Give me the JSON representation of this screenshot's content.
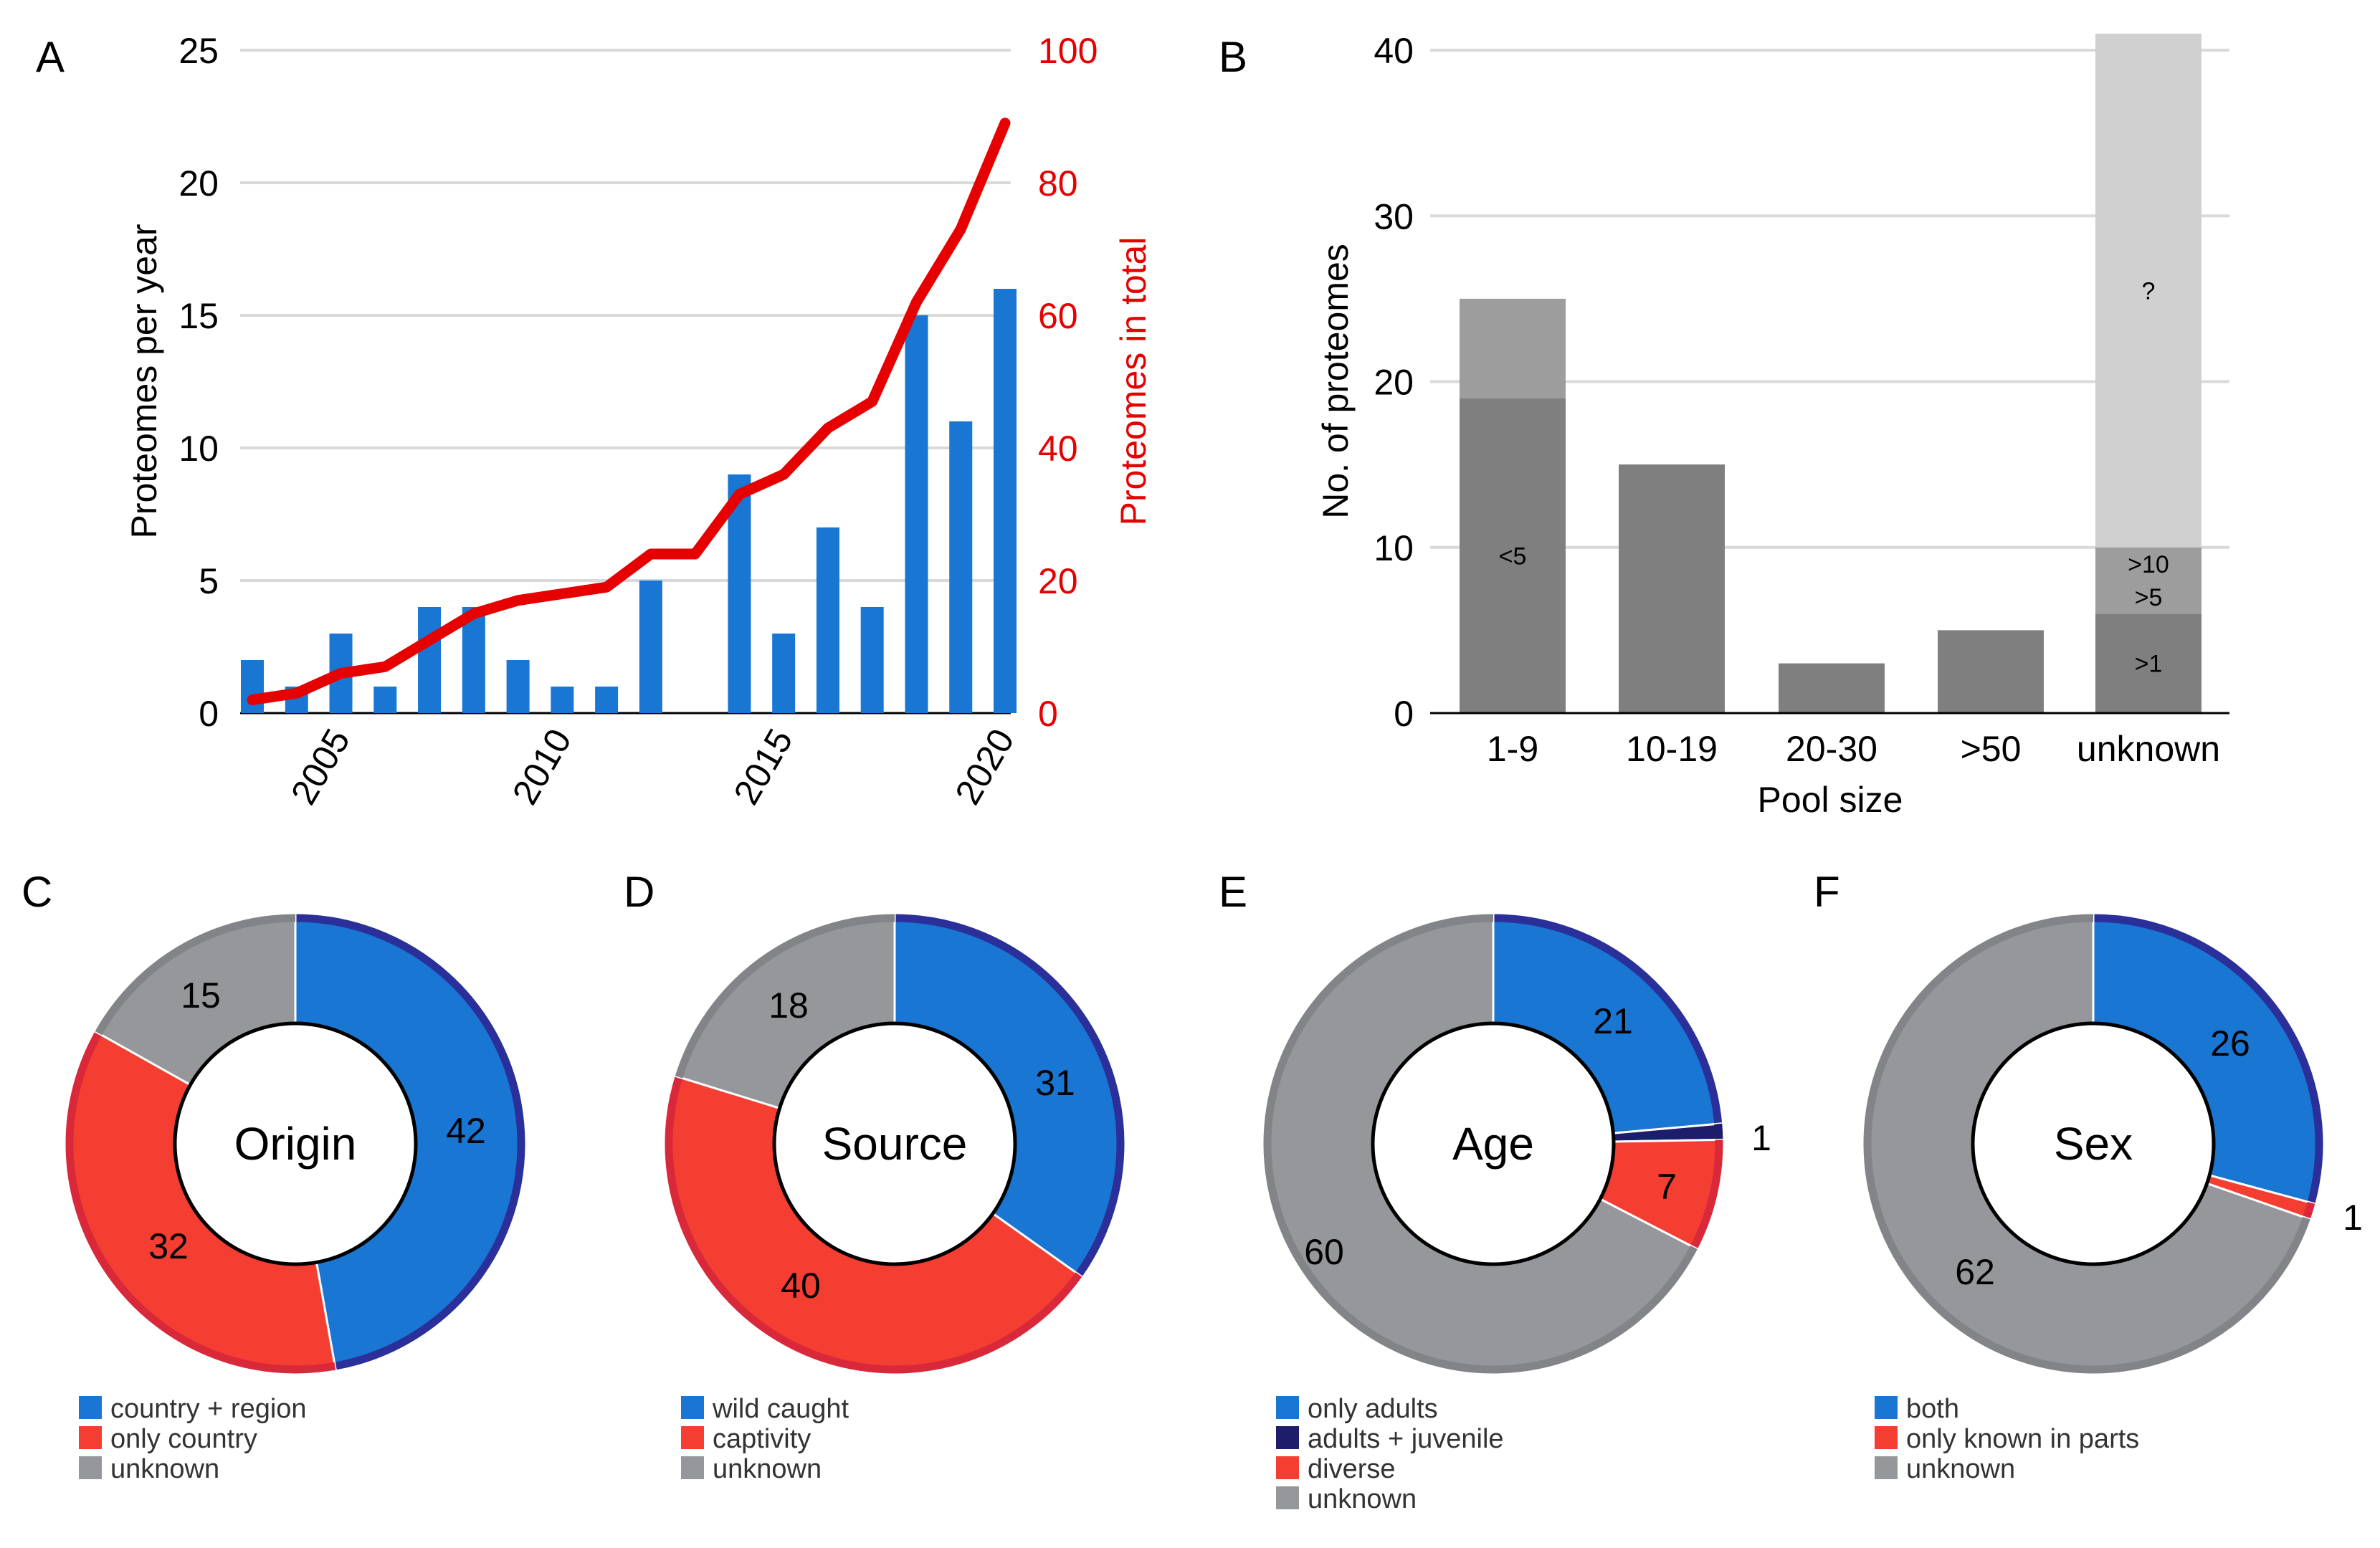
{
  "colors": {
    "blue": "#1976d2",
    "blue_edge": "#2a2f9a",
    "navy": "#1d1d6b",
    "red": "#f43e32",
    "red_edge": "#d9283a",
    "line_red": "#e60000",
    "gray": "#96979b",
    "gray_edge": "#838487",
    "bar_gray": "#7f7f7f",
    "bar_mid": "#9d9d9d",
    "bar_light": "#d0d0d0",
    "grid": "#d9d9d9"
  },
  "chart_data": [
    {
      "panel": "A",
      "type": "bar+line",
      "ylabel": "Proteomes per year",
      "y2label": "Proteomes in total",
      "ylim": [
        0,
        25
      ],
      "y2lim": [
        0,
        100
      ],
      "yticks": [
        0,
        5,
        10,
        15,
        20,
        25
      ],
      "y2ticks": [
        0,
        20,
        40,
        60,
        80,
        100
      ],
      "xticks": [
        2005,
        2010,
        2015,
        2020
      ],
      "years": [
        2003,
        2004,
        2005,
        2006,
        2007,
        2008,
        2009,
        2010,
        2011,
        2012,
        2013,
        2014,
        2015,
        2016,
        2017,
        2018,
        2019,
        2020
      ],
      "per_year": [
        2,
        1,
        3,
        1,
        4,
        4,
        2,
        1,
        1,
        5,
        0,
        9,
        3,
        7,
        4,
        15,
        11,
        16
      ],
      "cumulative": [
        2,
        3,
        6,
        7,
        11,
        15,
        17,
        18,
        19,
        24,
        24,
        33,
        36,
        43,
        47,
        62,
        73,
        89
      ]
    },
    {
      "panel": "B",
      "type": "stacked-bar",
      "xlabel": "Pool size",
      "ylabel": "No. of proteomes",
      "ylim": [
        0,
        40
      ],
      "yticks": [
        0,
        10,
        20,
        30,
        40
      ],
      "categories": [
        "1-9",
        "10-19",
        "20-30",
        ">50",
        "unknown"
      ],
      "stacks": [
        [
          {
            "value": 19,
            "label": "<5",
            "shade": "dark"
          },
          {
            "value": 6,
            "label": "",
            "shade": "mid"
          }
        ],
        [
          {
            "value": 15,
            "label": "",
            "shade": "dark"
          }
        ],
        [
          {
            "value": 3,
            "label": "",
            "shade": "dark"
          }
        ],
        [
          {
            "value": 5,
            "label": "",
            "shade": "dark"
          }
        ],
        [
          {
            "value": 6,
            "label": ">1",
            "shade": "dark"
          },
          {
            "value": 2,
            "label": ">5",
            "shade": "mid"
          },
          {
            "value": 2,
            "label": ">10",
            "shade": "mid"
          },
          {
            "value": 31,
            "label": "?",
            "shade": "light"
          }
        ]
      ]
    },
    {
      "panel": "C",
      "type": "pie",
      "title": "Origin",
      "slices": [
        {
          "label": "country + region",
          "value": 42,
          "color": "blue",
          "show": "42"
        },
        {
          "label": "only country",
          "value": 32,
          "color": "red",
          "show": "32"
        },
        {
          "label": "unknown",
          "value": 15,
          "color": "gray",
          "show": "15"
        }
      ]
    },
    {
      "panel": "D",
      "type": "pie",
      "title": "Source",
      "slices": [
        {
          "label": "wild caught",
          "value": 31,
          "color": "blue",
          "show": "31"
        },
        {
          "label": "captivity",
          "value": 40,
          "color": "red",
          "show": "40"
        },
        {
          "label": "unknown",
          "value": 18,
          "color": "gray",
          "show": "18"
        }
      ]
    },
    {
      "panel": "E",
      "type": "pie",
      "title": "Age",
      "slices": [
        {
          "label": "only adults",
          "value": 21,
          "color": "blue",
          "show": "21"
        },
        {
          "label": "adults + juvenile",
          "value": 1,
          "color": "navy",
          "show": "1"
        },
        {
          "label": "diverse",
          "value": 7,
          "color": "red",
          "show": "7"
        },
        {
          "label": "unknown",
          "value": 60,
          "color": "gray",
          "show": "60"
        }
      ]
    },
    {
      "panel": "F",
      "type": "pie",
      "title": "Sex",
      "slices": [
        {
          "label": "both",
          "value": 26,
          "color": "blue",
          "show": "26"
        },
        {
          "label": "only known in parts",
          "value": 1,
          "color": "red",
          "show": "1"
        },
        {
          "label": "unknown",
          "value": 62,
          "color": "gray",
          "show": "62"
        }
      ]
    }
  ]
}
